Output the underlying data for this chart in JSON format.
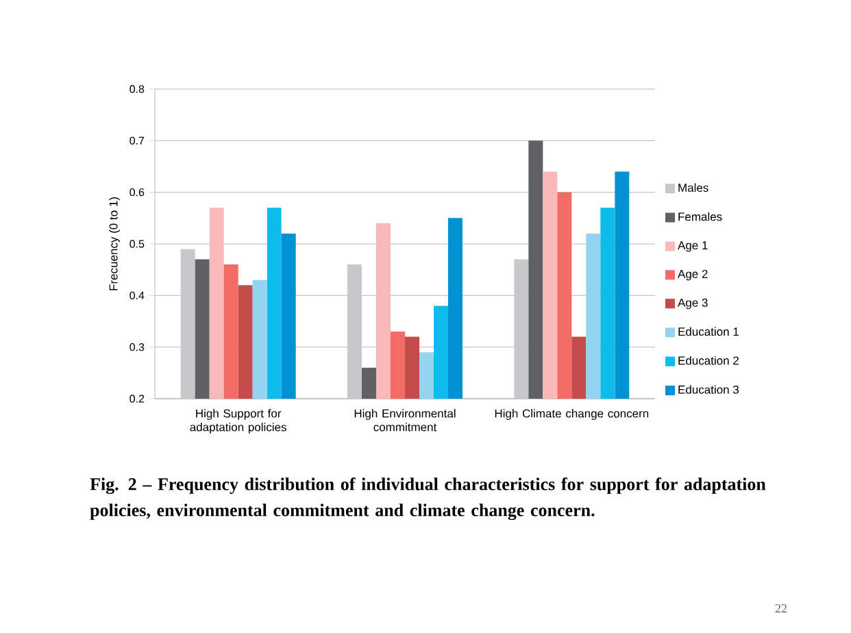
{
  "chart_data": {
    "type": "bar",
    "ylabel": "Frecuency (0 to 1)",
    "categories": [
      "High Support for adaptation policies",
      "High Environmental commitment",
      "High Climate change concern"
    ],
    "series": [
      {
        "name": "Males",
        "color": "#c8c8ca",
        "values": [
          0.49,
          0.46,
          0.47
        ]
      },
      {
        "name": "Females",
        "color": "#616065",
        "values": [
          0.47,
          0.26,
          0.7
        ]
      },
      {
        "name": "Age 1",
        "color": "#f9b9b8",
        "values": [
          0.57,
          0.54,
          0.64
        ]
      },
      {
        "name": "Age 2",
        "color": "#f26b64",
        "values": [
          0.46,
          0.33,
          0.6
        ]
      },
      {
        "name": "Age 3",
        "color": "#c44c4a",
        "values": [
          0.42,
          0.32,
          0.32
        ]
      },
      {
        "name": "Education 1",
        "color": "#93d5f1",
        "values": [
          0.43,
          0.29,
          0.52
        ]
      },
      {
        "name": "Education 2",
        "color": "#0ebbeb",
        "values": [
          0.57,
          0.38,
          0.57
        ]
      },
      {
        "name": "Education 3",
        "color": "#0092d2",
        "values": [
          0.52,
          0.55,
          0.64
        ]
      }
    ],
    "ylim": [
      0.2,
      0.8
    ],
    "yticks": [
      0.2,
      0.3,
      0.4,
      0.5,
      0.6,
      0.7,
      0.8
    ],
    "grid": "y",
    "legend": "right",
    "annotations": [
      "Fig. 2 – Frequency distribution of individual characteristics for support for adaptation policies, environmental commitment and climate change concern.",
      "22"
    ]
  }
}
